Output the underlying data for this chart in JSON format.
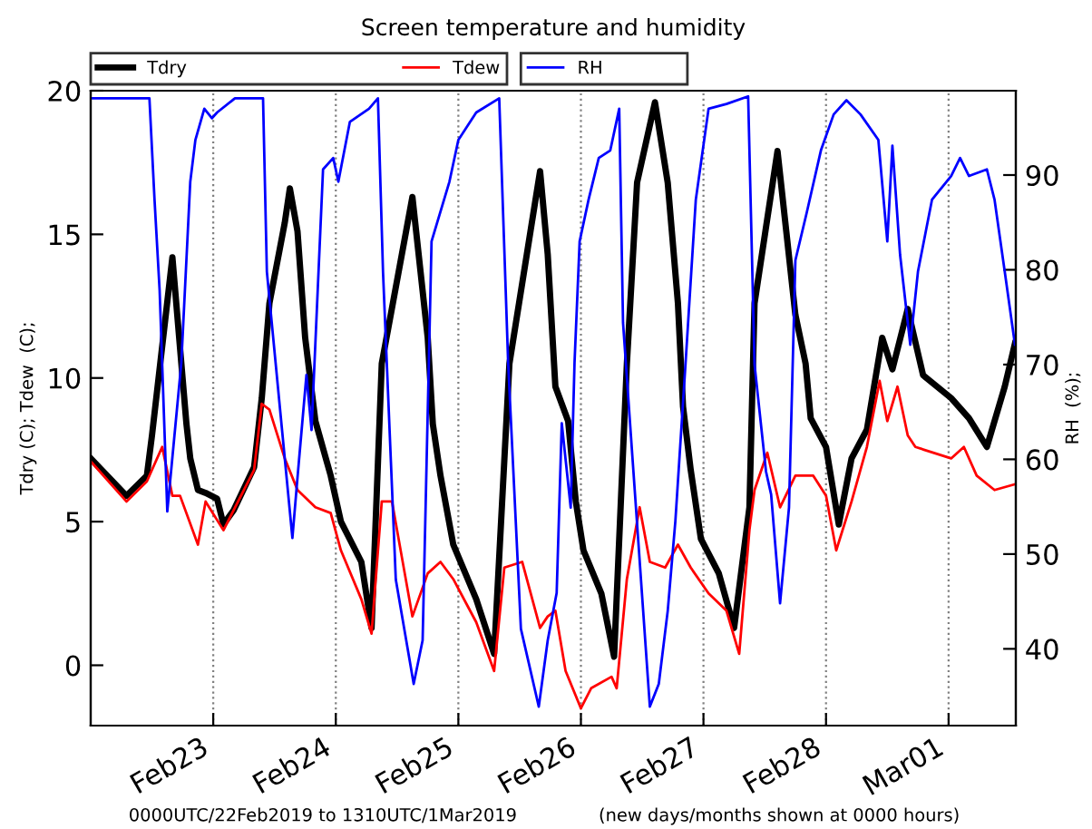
{
  "chart_data": {
    "type": "line",
    "title": "Screen temperature and humidity",
    "ylabel": "Tdry (C); Tdew  (C);",
    "y2label": "RH  (%);",
    "annotations": [
      "0000UTC/22Feb2019 to 1310UTC/1Mar2019",
      "(new days/months shown at 0000 hours)"
    ],
    "xlim": [
      "2019-02-22T00:00",
      "2019-03-01T13:10"
    ],
    "xticks": [
      {
        "value": "2019-02-23",
        "label": "Feb23"
      },
      {
        "value": "2019-02-24",
        "label": "Feb24"
      },
      {
        "value": "2019-02-25",
        "label": "Feb25"
      },
      {
        "value": "2019-02-26",
        "label": "Feb26"
      },
      {
        "value": "2019-02-27",
        "label": "Feb27"
      },
      {
        "value": "2019-02-28",
        "label": "Feb28"
      },
      {
        "value": "2019-03-01",
        "label": "Mar01"
      }
    ],
    "ylim": [
      -2.1,
      20
    ],
    "yticks": [
      0,
      5,
      10,
      15,
      20
    ],
    "y2lim": [
      31.9,
      98.9
    ],
    "y2ticks": [
      40,
      50,
      60,
      70,
      80,
      90
    ],
    "grid": "x",
    "legend": "top left",
    "line_style": "solid",
    "marker": "none",
    "series": [
      {
        "name": "Tdry",
        "color": "#000000",
        "x": [
          "2019-02-22T00:00",
          "2019-02-22T07:00",
          "2019-02-22T11:00",
          "2019-02-22T12:00",
          "2019-02-22T16:00",
          "2019-02-22T18:45",
          "2019-02-22T19:30",
          "2019-02-22T21:00",
          "2019-02-22T22:30",
          "2019-02-23T00:45",
          "2019-02-23T02:00",
          "2019-02-23T04:00",
          "2019-02-23T08:00",
          "2019-02-23T09:30",
          "2019-02-23T11:00",
          "2019-02-23T14:00",
          "2019-02-23T15:00",
          "2019-02-23T16:30",
          "2019-02-23T18:00",
          "2019-02-23T20:00",
          "2019-02-23T23:00",
          "2019-02-24T01:00",
          "2019-02-24T05:00",
          "2019-02-24T07:00",
          "2019-02-24T09:00",
          "2019-02-24T15:00",
          "2019-02-24T18:00",
          "2019-02-24T19:00",
          "2019-02-24T20:30",
          "2019-02-24T23:00",
          "2019-02-25T03:30",
          "2019-02-25T07:00",
          "2019-02-25T10:00",
          "2019-02-25T16:00",
          "2019-02-25T17:30",
          "2019-02-25T19:00",
          "2019-02-25T21:30",
          "2019-02-25T23:00",
          "2019-02-26T00:30",
          "2019-02-26T04:00",
          "2019-02-26T06:30",
          "2019-02-26T09:00",
          "2019-02-26T11:00",
          "2019-02-26T14:30",
          "2019-02-26T17:00",
          "2019-02-26T19:00",
          "2019-02-26T20:00",
          "2019-02-26T21:30",
          "2019-02-26T23:30",
          "2019-02-27T03:00",
          "2019-02-27T06:00",
          "2019-02-27T09:00",
          "2019-02-27T10:00",
          "2019-02-27T14:30",
          "2019-02-27T18:00",
          "2019-02-27T20:00",
          "2019-02-27T21:00",
          "2019-02-28T00:00",
          "2019-02-28T02:30",
          "2019-02-28T05:00",
          "2019-02-28T08:00",
          "2019-02-28T11:00",
          "2019-02-28T13:00",
          "2019-02-28T16:00",
          "2019-02-28T19:00",
          "2019-03-01T00:30",
          "2019-03-01T04:00",
          "2019-03-01T07:30",
          "2019-03-01T11:00",
          "2019-03-01T13:00"
        ],
        "values": [
          7.2,
          5.9,
          6.6,
          8.0,
          14.2,
          8.4,
          7.2,
          6.1,
          6.0,
          5.8,
          4.9,
          5.4,
          6.9,
          9.3,
          12.6,
          15.4,
          16.6,
          15.1,
          11.4,
          8.5,
          6.6,
          5.0,
          3.6,
          1.3,
          10.5,
          16.3,
          11.4,
          8.4,
          6.6,
          4.2,
          2.3,
          0.4,
          10.5,
          17.2,
          14.3,
          9.7,
          8.5,
          5.7,
          4.0,
          2.5,
          0.3,
          10.5,
          16.8,
          19.6,
          16.8,
          12.6,
          9.0,
          6.8,
          4.4,
          3.2,
          1.3,
          5.5,
          12.6,
          17.9,
          12.2,
          10.5,
          8.6,
          7.6,
          4.9,
          7.2,
          8.2,
          11.4,
          10.3,
          12.4,
          10.1,
          9.3,
          8.6,
          7.6,
          9.7,
          11.2
        ]
      },
      {
        "name": "Tdew",
        "color": "#ff0000",
        "x": [
          "2019-02-22T00:00",
          "2019-02-22T07:00",
          "2019-02-22T11:00",
          "2019-02-22T14:00",
          "2019-02-22T16:00",
          "2019-02-22T17:30",
          "2019-02-22T21:00",
          "2019-02-22T22:30",
          "2019-02-23T02:00",
          "2019-02-23T08:00",
          "2019-02-23T09:30",
          "2019-02-23T11:00",
          "2019-02-23T14:00",
          "2019-02-23T16:30",
          "2019-02-23T20:00",
          "2019-02-23T23:00",
          "2019-02-24T01:00",
          "2019-02-24T05:00",
          "2019-02-24T07:00",
          "2019-02-24T09:00",
          "2019-02-24T11:00",
          "2019-02-24T13:30",
          "2019-02-24T15:00",
          "2019-02-24T18:00",
          "2019-02-24T20:30",
          "2019-02-24T23:00",
          "2019-02-25T03:30",
          "2019-02-25T07:00",
          "2019-02-25T09:00",
          "2019-02-25T12:30",
          "2019-02-25T16:00",
          "2019-02-25T17:30",
          "2019-02-25T19:00",
          "2019-02-25T21:00",
          "2019-02-26T00:00",
          "2019-02-26T02:00",
          "2019-02-26T06:00",
          "2019-02-26T07:00",
          "2019-02-26T09:00",
          "2019-02-26T11:30",
          "2019-02-26T13:30",
          "2019-02-26T16:30",
          "2019-02-26T19:00",
          "2019-02-26T21:30",
          "2019-02-27T01:00",
          "2019-02-27T04:30",
          "2019-02-27T07:00",
          "2019-02-27T09:00",
          "2019-02-27T10:00",
          "2019-02-27T12:30",
          "2019-02-27T15:00",
          "2019-02-27T18:00",
          "2019-02-27T21:30",
          "2019-02-28T00:00",
          "2019-02-28T02:00",
          "2019-02-28T05:00",
          "2019-02-28T08:00",
          "2019-02-28T10:30",
          "2019-02-28T12:00",
          "2019-02-28T14:00",
          "2019-02-28T16:00",
          "2019-02-28T17:30",
          "2019-02-28T21:00",
          "2019-03-01T00:30",
          "2019-03-01T03:00",
          "2019-03-01T05:30",
          "2019-03-01T09:00",
          "2019-03-01T13:00"
        ],
        "values": [
          7.1,
          5.7,
          6.4,
          7.6,
          5.9,
          5.9,
          4.2,
          5.7,
          4.7,
          6.8,
          9.1,
          8.9,
          7.2,
          6.1,
          5.5,
          5.3,
          4.0,
          2.3,
          1.1,
          5.7,
          5.7,
          3.2,
          1.7,
          3.2,
          3.6,
          3.0,
          1.5,
          -0.2,
          3.4,
          3.6,
          1.3,
          1.7,
          1.9,
          -0.2,
          -1.5,
          -0.8,
          -0.4,
          -0.8,
          3.0,
          5.5,
          3.6,
          3.4,
          4.2,
          3.4,
          2.5,
          1.9,
          0.4,
          4.7,
          6.1,
          7.4,
          5.5,
          6.6,
          6.6,
          5.9,
          4.0,
          5.7,
          7.6,
          9.9,
          8.5,
          9.7,
          8.0,
          7.6,
          7.4,
          7.2,
          7.6,
          6.6,
          6.1,
          6.3
        ]
      },
      {
        "name": "RH",
        "color": "#0000ff",
        "axis": "y2",
        "x": [
          "2019-02-22T00:00",
          "2019-02-22T11:30",
          "2019-02-22T12:30",
          "2019-02-22T13:30",
          "2019-02-22T15:00",
          "2019-02-22T17:45",
          "2019-02-22T19:30",
          "2019-02-22T20:30",
          "2019-02-22T22:15",
          "2019-02-22T23:45",
          "2019-02-23T00:45",
          "2019-02-23T04:15",
          "2019-02-23T09:45",
          "2019-02-23T10:30",
          "2019-02-23T15:30",
          "2019-02-23T16:30",
          "2019-02-23T18:15",
          "2019-02-23T19:15",
          "2019-02-23T21:30",
          "2019-02-23T23:30",
          "2019-02-24T00:30",
          "2019-02-24T02:45",
          "2019-02-24T06:30",
          "2019-02-24T08:15",
          "2019-02-24T09:15",
          "2019-02-24T11:45",
          "2019-02-24T15:15",
          "2019-02-24T17:00",
          "2019-02-24T18:45",
          "2019-02-24T22:15",
          "2019-02-25T00:00",
          "2019-02-25T03:30",
          "2019-02-25T08:00",
          "2019-02-25T09:45",
          "2019-02-25T12:15",
          "2019-02-25T15:45",
          "2019-02-25T17:30",
          "2019-02-25T19:15",
          "2019-02-25T20:15",
          "2019-02-25T22:00",
          "2019-02-25T22:45",
          "2019-02-25T23:45",
          "2019-02-26T01:30",
          "2019-02-26T03:30",
          "2019-02-26T05:45",
          "2019-02-26T07:30",
          "2019-02-26T08:15",
          "2019-02-26T13:30",
          "2019-02-26T15:15",
          "2019-02-26T17:00",
          "2019-02-26T18:30",
          "2019-02-26T20:30",
          "2019-02-26T22:30",
          "2019-02-27T01:00",
          "2019-02-27T04:30",
          "2019-02-27T08:45",
          "2019-02-27T10:00",
          "2019-02-27T12:15",
          "2019-02-27T13:15",
          "2019-02-27T15:00",
          "2019-02-27T16:45",
          "2019-02-27T18:00",
          "2019-02-27T20:15",
          "2019-02-27T23:00",
          "2019-02-28T01:30",
          "2019-02-28T04:00",
          "2019-02-28T06:45",
          "2019-02-28T10:15",
          "2019-02-28T12:00",
          "2019-02-28T13:00",
          "2019-02-28T14:30",
          "2019-02-28T16:30",
          "2019-02-28T18:00",
          "2019-02-28T20:45",
          "2019-03-01T00:30",
          "2019-03-01T02:15",
          "2019-03-01T04:00",
          "2019-03-01T07:30",
          "2019-03-01T09:00",
          "2019-03-01T11:00",
          "2019-03-01T13:00"
        ],
        "values": [
          98.1,
          98.1,
          87.4,
          77.8,
          54.5,
          70.2,
          89.3,
          93.7,
          97.0,
          96.0,
          96.6,
          98.1,
          98.1,
          79.8,
          51.7,
          58.1,
          68.9,
          63.1,
          90.6,
          91.8,
          89.3,
          95.6,
          97.0,
          98.1,
          79.7,
          47.3,
          36.3,
          40.9,
          83.0,
          89.3,
          93.7,
          96.6,
          98.1,
          70.2,
          42.1,
          33.9,
          40.9,
          45.9,
          63.8,
          54.9,
          70.2,
          83.0,
          87.4,
          91.8,
          92.6,
          97.0,
          74.4,
          33.9,
          36.3,
          44.0,
          53.5,
          70.2,
          87.4,
          97.0,
          97.5,
          98.3,
          70.0,
          58.7,
          56.3,
          44.8,
          54.9,
          81.0,
          86.1,
          92.6,
          96.4,
          97.9,
          96.4,
          93.7,
          83.0,
          93.1,
          81.6,
          72.1,
          79.8,
          87.4,
          89.9,
          91.8,
          89.9,
          90.6,
          87.4,
          79.8,
          72.1
        ]
      }
    ]
  }
}
